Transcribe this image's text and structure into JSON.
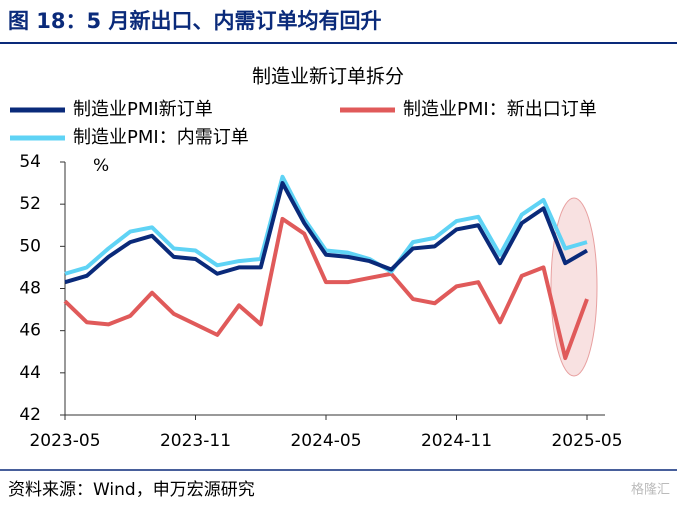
{
  "header": {
    "title": "图 18：5 月新出口、内需订单均有回升"
  },
  "chart_data": {
    "type": "line",
    "title": "制造业新订单拆分",
    "y_unit": "%",
    "categories": [
      "2023-05",
      null,
      null,
      null,
      null,
      null,
      "2023-11",
      null,
      null,
      null,
      null,
      null,
      "2024-05",
      null,
      null,
      null,
      null,
      null,
      "2024-11",
      null,
      null,
      null,
      null,
      null,
      "2025-05"
    ],
    "series": [
      {
        "name": "制造业PMI新订单",
        "color": "#0a2a7a",
        "values": [
          48.3,
          48.6,
          49.5,
          50.2,
          50.5,
          49.5,
          49.4,
          48.7,
          49.0,
          49.0,
          53.0,
          51.1,
          49.6,
          49.5,
          49.3,
          48.9,
          49.9,
          50.0,
          50.8,
          51.0,
          49.2,
          51.1,
          51.8,
          49.2,
          49.8
        ]
      },
      {
        "name": "制造业PMI：新出口订单",
        "color": "#e05a5a",
        "values": [
          47.4,
          46.4,
          46.3,
          46.7,
          47.8,
          46.8,
          46.3,
          45.8,
          47.2,
          46.3,
          51.3,
          50.6,
          48.3,
          48.3,
          48.5,
          48.7,
          47.5,
          47.3,
          48.1,
          48.3,
          46.4,
          48.6,
          49.0,
          44.7,
          47.5
        ]
      },
      {
        "name": "制造业PMI：内需订单",
        "color": "#5fd3f5",
        "values": [
          48.7,
          49.0,
          49.9,
          50.7,
          50.9,
          49.9,
          49.8,
          49.1,
          49.3,
          49.4,
          53.3,
          51.3,
          49.8,
          49.7,
          49.4,
          48.8,
          50.2,
          50.4,
          51.2,
          51.4,
          49.6,
          51.5,
          52.2,
          49.9,
          50.2
        ]
      }
    ],
    "ylim": [
      42,
      54
    ],
    "yticks": [
      42,
      44,
      46,
      48,
      50,
      52,
      54
    ]
  },
  "footer": {
    "source": "资料来源：Wind，申万宏源研究",
    "watermark": "格隆汇"
  }
}
